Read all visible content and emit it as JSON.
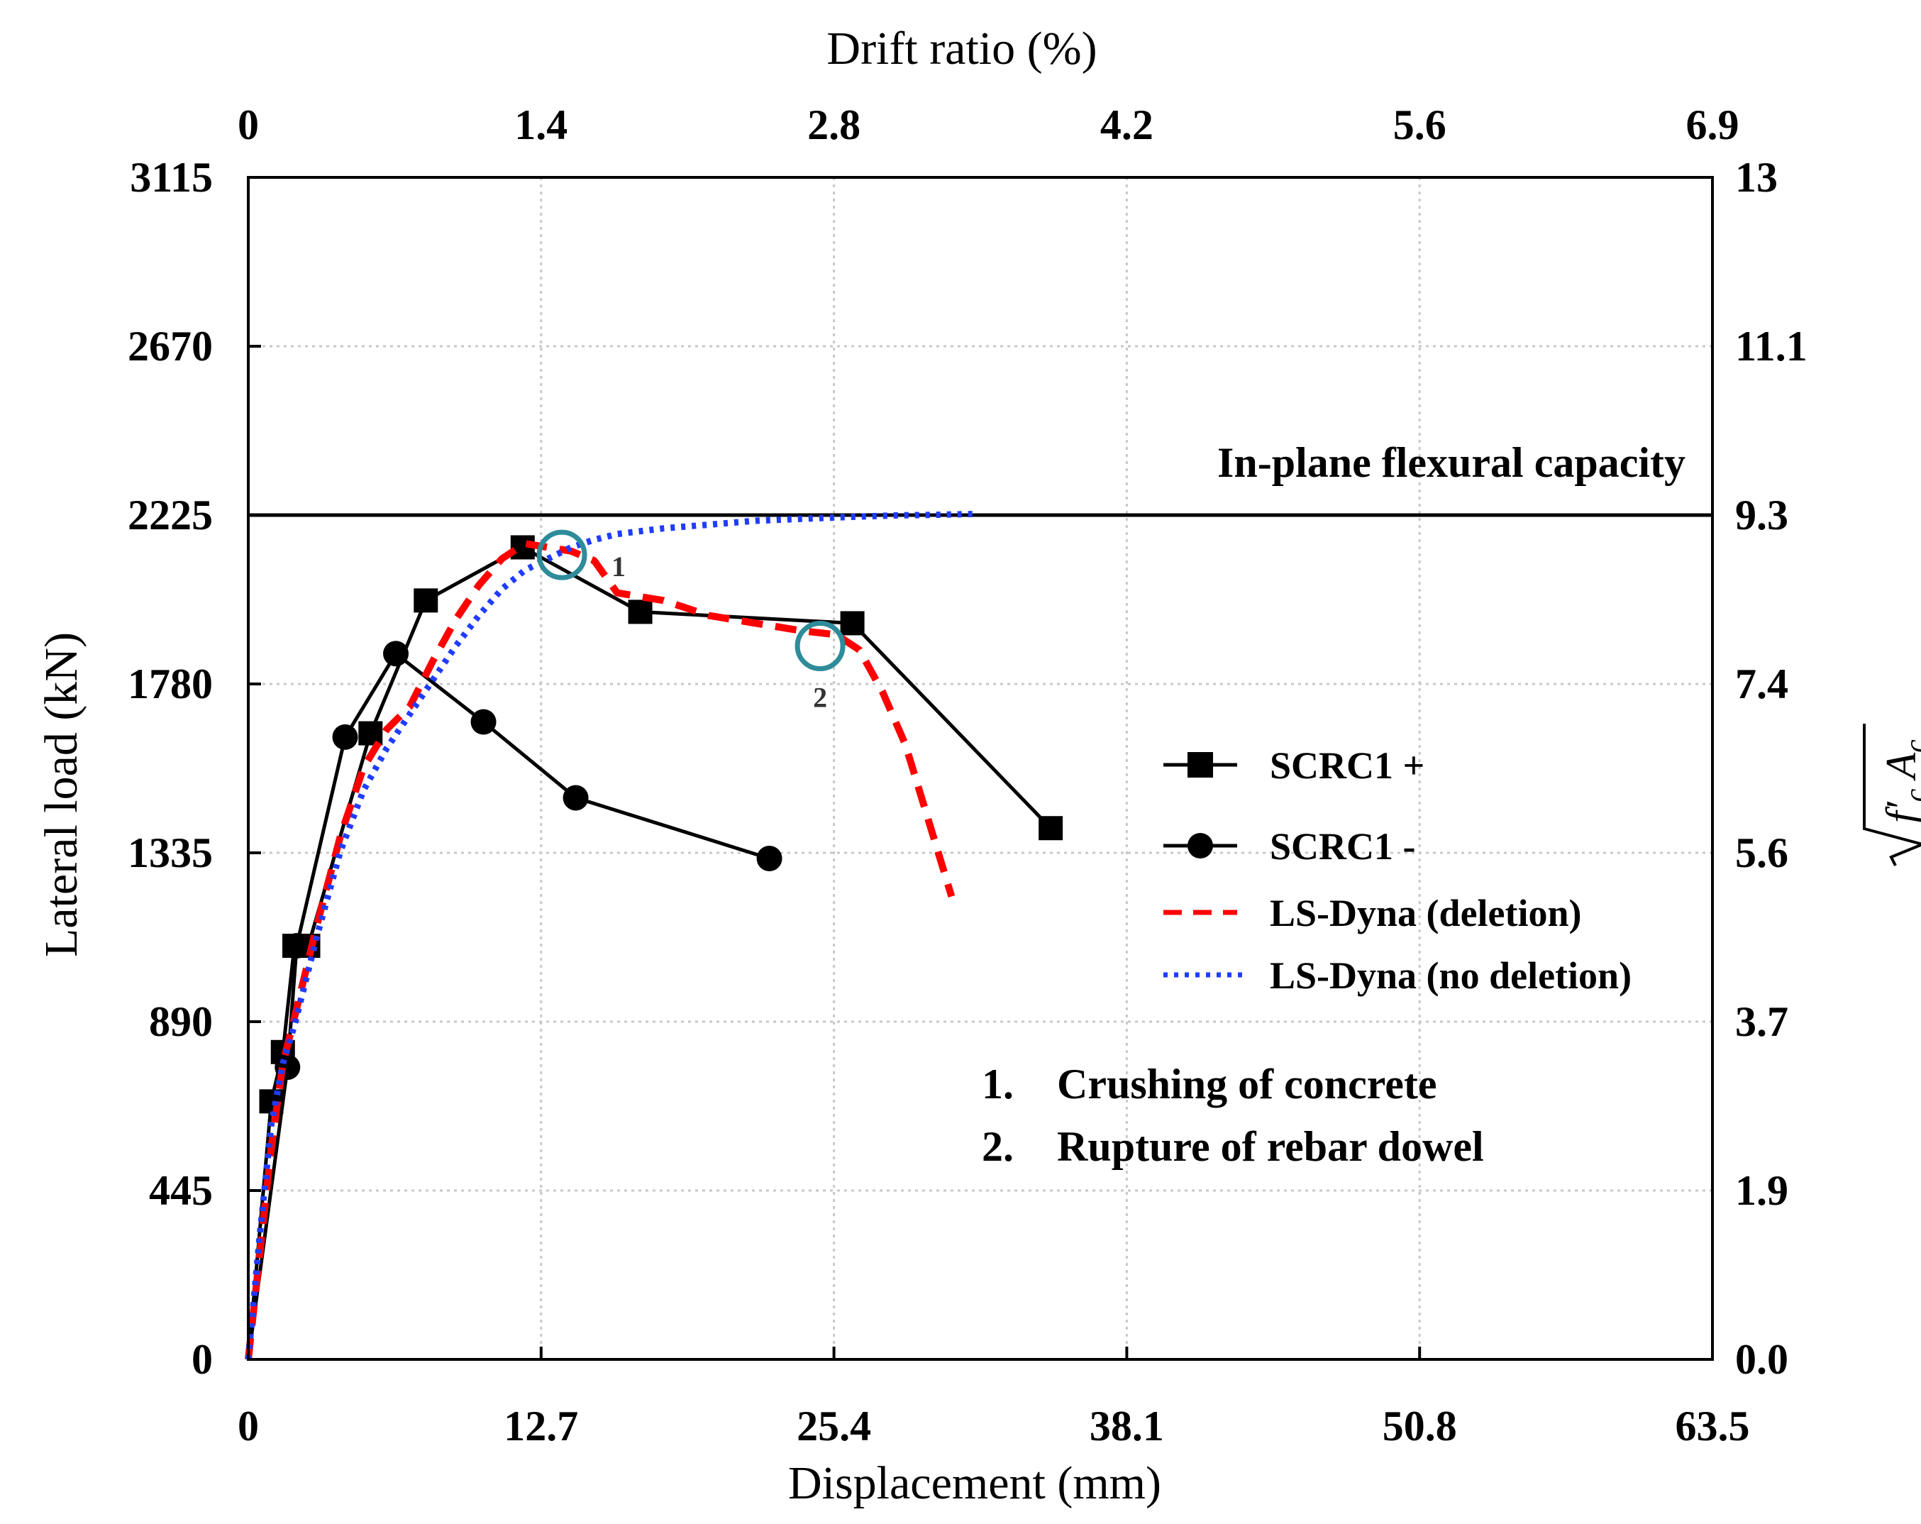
{
  "chart_data": {
    "type": "line",
    "x_axis": {
      "label": "Displacement (mm)",
      "range": [
        0,
        63.5
      ],
      "ticks": [
        "0",
        "12.7",
        "25.4",
        "38.1",
        "50.8",
        "63.5"
      ],
      "tick_values": [
        0,
        12.7,
        25.4,
        38.1,
        50.8,
        63.5
      ]
    },
    "x2_axis": {
      "label": "Drift ratio (%)",
      "ticks": [
        "0",
        "1.4",
        "2.8",
        "4.2",
        "5.6",
        "6.9"
      ]
    },
    "y_axis": {
      "label": "Lateral load (kN)",
      "range": [
        0,
        3115
      ],
      "ticks": [
        "0",
        "445",
        "890",
        "1335",
        "1780",
        "2225",
        "2670",
        "3115"
      ],
      "tick_values": [
        0,
        445,
        890,
        1335,
        1780,
        2225,
        2670,
        3115
      ]
    },
    "y2_axis": {
      "label_math": "√f′c Ac",
      "ticks": [
        "0.0",
        "1.9",
        "3.7",
        "5.6",
        "7.4",
        "9.3",
        "11.1",
        "13"
      ]
    },
    "grid": true,
    "reference_line": {
      "label": "In-plane flexural capacity",
      "y": 2225
    },
    "series": [
      {
        "name": "SCRC1 +",
        "style": "solid-square",
        "color": "#000000",
        "x": [
          0,
          1.0,
          1.5,
          2.0,
          2.6,
          5.3,
          7.7,
          11.9,
          17.0,
          26.2,
          34.8
        ],
        "y": [
          0,
          680,
          810,
          1090,
          1090,
          1650,
          2000,
          2140,
          1970,
          1940,
          1400
        ]
      },
      {
        "name": "SCRC1 -",
        "style": "solid-circle",
        "color": "#000000",
        "x": [
          0,
          1.7,
          2.1,
          4.2,
          6.4,
          10.2,
          14.2,
          22.6
        ],
        "y": [
          0,
          770,
          1090,
          1640,
          1860,
          1680,
          1480,
          1320
        ]
      },
      {
        "name": "LS-Dyna (deletion)",
        "style": "dashed",
        "color": "#ff0000",
        "x": [
          0,
          0.5,
          1.0,
          1.5,
          2.0,
          3.0,
          4.0,
          5.0,
          6.0,
          7.0,
          8.0,
          9.0,
          10.0,
          11.0,
          12.0,
          13.0,
          14.0,
          15.0,
          16.0,
          17.0,
          18.0,
          20.0,
          22.0,
          24.0,
          25.5,
          26.5,
          27.5,
          28.5,
          29.5,
          30.5
        ],
        "y": [
          0,
          280,
          560,
          780,
          900,
          1150,
          1380,
          1560,
          1660,
          1720,
          1840,
          1950,
          2040,
          2110,
          2150,
          2140,
          2130,
          2105,
          2020,
          2010,
          2000,
          1960,
          1940,
          1920,
          1910,
          1870,
          1760,
          1620,
          1420,
          1220
        ]
      },
      {
        "name": "LS-Dyna (no deletion)",
        "style": "dotted",
        "color": "#1f3cff",
        "x": [
          0,
          0.5,
          1.0,
          1.5,
          2.0,
          3.0,
          4.0,
          5.0,
          6.0,
          7.0,
          8.0,
          9.0,
          10.0,
          11.0,
          12.0,
          13.0,
          14.0,
          15.0,
          16.0,
          18.0,
          20.0,
          22.0,
          24.0,
          26.0,
          28.0,
          30.0,
          31.5
        ],
        "y": [
          0,
          330,
          620,
          780,
          880,
          1120,
          1340,
          1500,
          1610,
          1700,
          1790,
          1880,
          1960,
          2030,
          2080,
          2110,
          2140,
          2160,
          2175,
          2190,
          2200,
          2210,
          2215,
          2220,
          2224,
          2226,
          2228
        ]
      }
    ],
    "annotations": [
      {
        "number": "1",
        "text": "Crushing of concrete",
        "marker_x": 13.6,
        "marker_y": 2120,
        "list_label": "1.",
        "list_text": "Crushing of concrete"
      },
      {
        "number": "2",
        "text": "Rupture of rebar dowel",
        "marker_x": 24.8,
        "marker_y": 1880,
        "list_label": "2.",
        "list_text": "Rupture of rebar dowel"
      }
    ],
    "annotation_marker_color": "#2e8b9a"
  }
}
